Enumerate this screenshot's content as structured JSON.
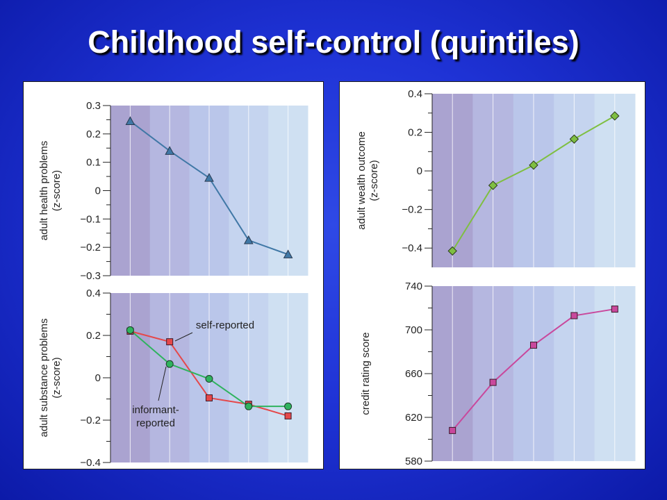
{
  "slide": {
    "title": "Childhood self-control (quintiles)"
  },
  "colors": {
    "bands": [
      "#aaa3d0",
      "#b5b7e0",
      "#bac6ea",
      "#c5d4ef",
      "#cfe0f2"
    ],
    "health": "#4078a6",
    "self_reported": "#e5484a",
    "informant_reported": "#2fb35e",
    "wealth": "#7fbf42",
    "credit": "#c9489c"
  },
  "chart_data": [
    {
      "id": "health",
      "type": "line",
      "ylabel": [
        "adult health problems",
        "(z-score)"
      ],
      "ylim": [
        -0.3,
        0.3
      ],
      "yticks": [
        0.3,
        0.2,
        0.1,
        0,
        -0.1,
        -0.2,
        -0.3
      ],
      "ytick_labels": [
        "0.3",
        "0.2",
        "0.1",
        "0",
        "−0.1",
        "−0.2",
        "−0.3"
      ],
      "x": [
        1,
        2,
        3,
        4,
        5
      ],
      "series": [
        {
          "key": "health",
          "marker": "triangle",
          "values": [
            0.245,
            0.14,
            0.045,
            -0.175,
            -0.225
          ]
        }
      ]
    },
    {
      "id": "substance",
      "type": "line",
      "ylabel": [
        "adult substance problems",
        "(z-score)"
      ],
      "ylim": [
        -0.4,
        0.4
      ],
      "yticks": [
        0.4,
        0.2,
        0,
        -0.2,
        -0.4
      ],
      "ytick_labels": [
        "0.4",
        "0.2",
        "0",
        "−0.2",
        "−0.4"
      ],
      "x": [
        1,
        2,
        3,
        4,
        5
      ],
      "series": [
        {
          "key": "self_reported",
          "name": "self-reported",
          "marker": "square",
          "values": [
            0.22,
            0.17,
            -0.095,
            -0.125,
            -0.18
          ]
        },
        {
          "key": "informant_reported",
          "name": "informant-reported",
          "marker": "circle",
          "values": [
            0.225,
            0.065,
            -0.005,
            -0.135,
            -0.135
          ]
        }
      ],
      "annotations": [
        {
          "lines": [
            "self-reported"
          ]
        },
        {
          "lines": [
            "informant-",
            "reported"
          ]
        }
      ]
    },
    {
      "id": "wealth",
      "type": "line",
      "ylabel": [
        "adult wealth outcome",
        "(z-score)"
      ],
      "ylim": [
        -0.5,
        0.4
      ],
      "yticks": [
        0.4,
        0.2,
        0,
        -0.2,
        -0.4
      ],
      "ytick_labels": [
        "0.4",
        "0.2",
        "0",
        "−0.2",
        "−0.4"
      ],
      "x": [
        1,
        2,
        3,
        4,
        5
      ],
      "series": [
        {
          "key": "wealth",
          "marker": "diamond",
          "values": [
            -0.415,
            -0.075,
            0.03,
            0.165,
            0.285
          ]
        }
      ]
    },
    {
      "id": "credit",
      "type": "line",
      "ylabel": [
        "credit rating score"
      ],
      "ylim": [
        580,
        740
      ],
      "yticks": [
        740,
        700,
        660,
        620,
        580
      ],
      "ytick_labels": [
        "740",
        "700",
        "660",
        "620",
        "580"
      ],
      "x": [
        1,
        2,
        3,
        4,
        5
      ],
      "series": [
        {
          "key": "credit",
          "marker": "square",
          "values": [
            608,
            652,
            686,
            713,
            719
          ]
        }
      ]
    }
  ]
}
